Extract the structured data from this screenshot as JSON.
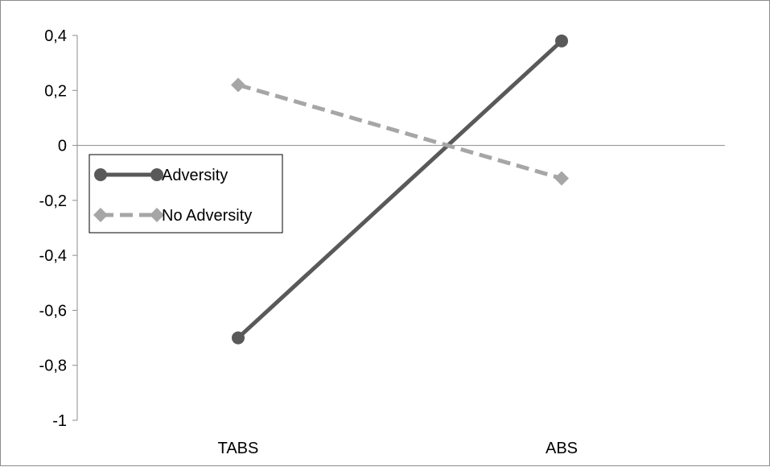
{
  "chart_data": {
    "type": "line",
    "categories": [
      "TABS",
      "ABS"
    ],
    "yticks": [
      "0,4",
      "0,2",
      "0",
      "-0,2",
      "-0,4",
      "-0,6",
      "-0,8",
      "-1"
    ],
    "ylim": [
      -1,
      0.4
    ],
    "series": [
      {
        "name": "Adversity",
        "values": [
          -0.7,
          0.38
        ],
        "color": "#595959",
        "marker": "circle",
        "dash": "solid"
      },
      {
        "name": "No Adversity",
        "values": [
          0.22,
          -0.12
        ],
        "color": "#a6a6a6",
        "marker": "diamond",
        "dash": "dashed"
      }
    ],
    "legend_position": "left-middle",
    "grid": false
  }
}
